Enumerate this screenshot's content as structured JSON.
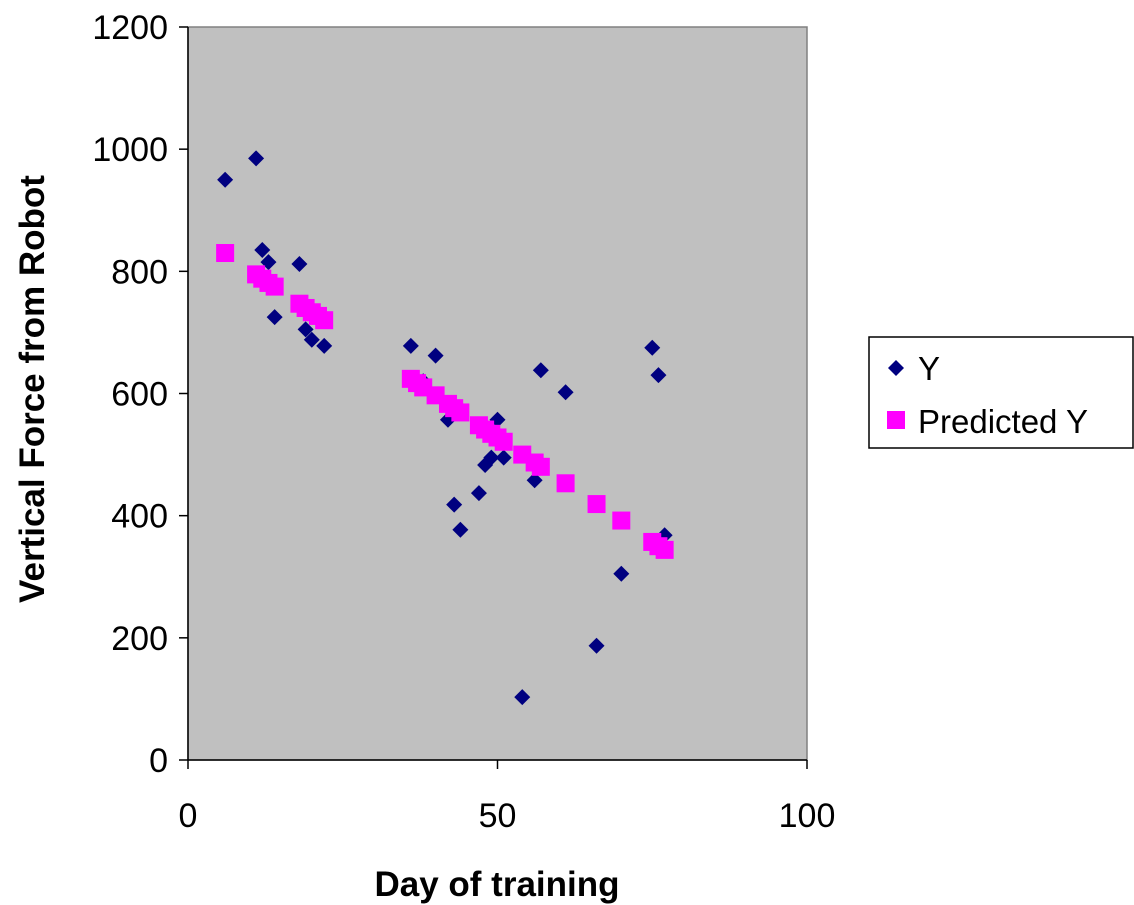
{
  "chart_data": {
    "type": "scatter",
    "title": "",
    "xlabel": "Day of training",
    "ylabel": "Vertical Force from Robot",
    "xlim": [
      0,
      100
    ],
    "ylim": [
      0,
      1200
    ],
    "xticks": [
      "0",
      "50",
      "100"
    ],
    "yticks": [
      "0",
      "200",
      "400",
      "600",
      "800",
      "1000",
      "1200"
    ],
    "xtick_values": [
      0,
      50,
      100
    ],
    "ytick_values": [
      0,
      200,
      400,
      600,
      800,
      1000,
      1200
    ],
    "grid": false,
    "plot_background": "#c0c0c0",
    "legend_position": "right",
    "series": [
      {
        "name": "Y",
        "marker": "diamond",
        "color": "#000080",
        "x": [
          6,
          11,
          12,
          13,
          14,
          18,
          19,
          20,
          22,
          36,
          38,
          40,
          42,
          43,
          44,
          47,
          48,
          49,
          50,
          51,
          54,
          56,
          57,
          61,
          66,
          70,
          75,
          76,
          77
        ],
        "y": [
          950,
          985,
          835,
          815,
          725,
          812,
          705,
          688,
          678,
          678,
          620,
          662,
          557,
          418,
          377,
          437,
          483,
          495,
          557,
          495,
          103,
          458,
          638,
          602,
          187,
          305,
          675,
          630,
          368
        ]
      },
      {
        "name": "Predicted Y",
        "marker": "square",
        "color": "#ff00ff",
        "x": [
          6,
          11,
          12,
          13,
          14,
          18,
          19,
          20,
          21,
          22,
          36,
          37,
          38,
          40,
          42,
          43,
          44,
          47,
          48,
          49,
          50,
          51,
          54,
          56,
          57,
          61,
          66,
          70,
          75,
          76,
          77
        ],
        "y": [
          830,
          795,
          788,
          781,
          775,
          747,
          740,
          733,
          727,
          720,
          624,
          617,
          610,
          597,
          583,
          576,
          569,
          548,
          541,
          534,
          528,
          521,
          500,
          487,
          480,
          453,
          419,
          392,
          357,
          350,
          344
        ]
      }
    ]
  }
}
